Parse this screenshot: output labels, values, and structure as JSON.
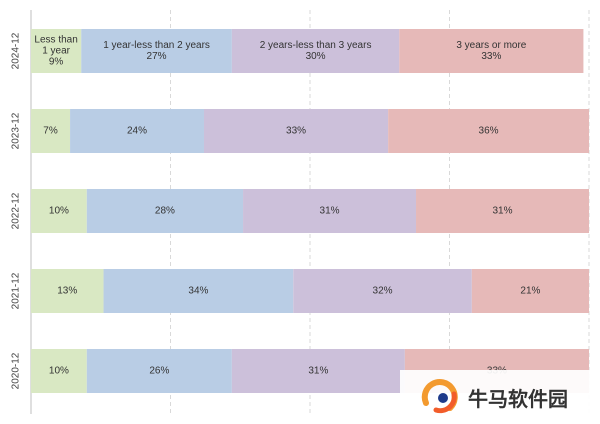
{
  "chart_data": {
    "type": "bar",
    "orientation": "horizontal",
    "stacked": true,
    "percent": true,
    "categories": [
      "2024-12",
      "2023-12",
      "2022-12",
      "2021-12",
      "2020-12"
    ],
    "series": [
      {
        "name": "Less than 1 year",
        "values": [
          9,
          7,
          10,
          13,
          10
        ],
        "color": "#d9e8c3"
      },
      {
        "name": "1 year-less than 2 years",
        "values": [
          27,
          24,
          28,
          34,
          26
        ],
        "color": "#b9cde5"
      },
      {
        "name": "2 years-less than 3 years",
        "values": [
          30,
          33,
          31,
          32,
          31
        ],
        "color": "#ccc0da"
      },
      {
        "name": "3 years or more",
        "values": [
          33,
          36,
          31,
          21,
          33
        ],
        "color": "#e6b9b8"
      }
    ],
    "xlim": [
      0,
      100
    ],
    "grid": "vertical-dashed",
    "legend": "none"
  },
  "watermark": {
    "text": "牛马软件园",
    "colors": [
      "#f39a2f",
      "#f25c2a",
      "#1e3a8a"
    ]
  }
}
